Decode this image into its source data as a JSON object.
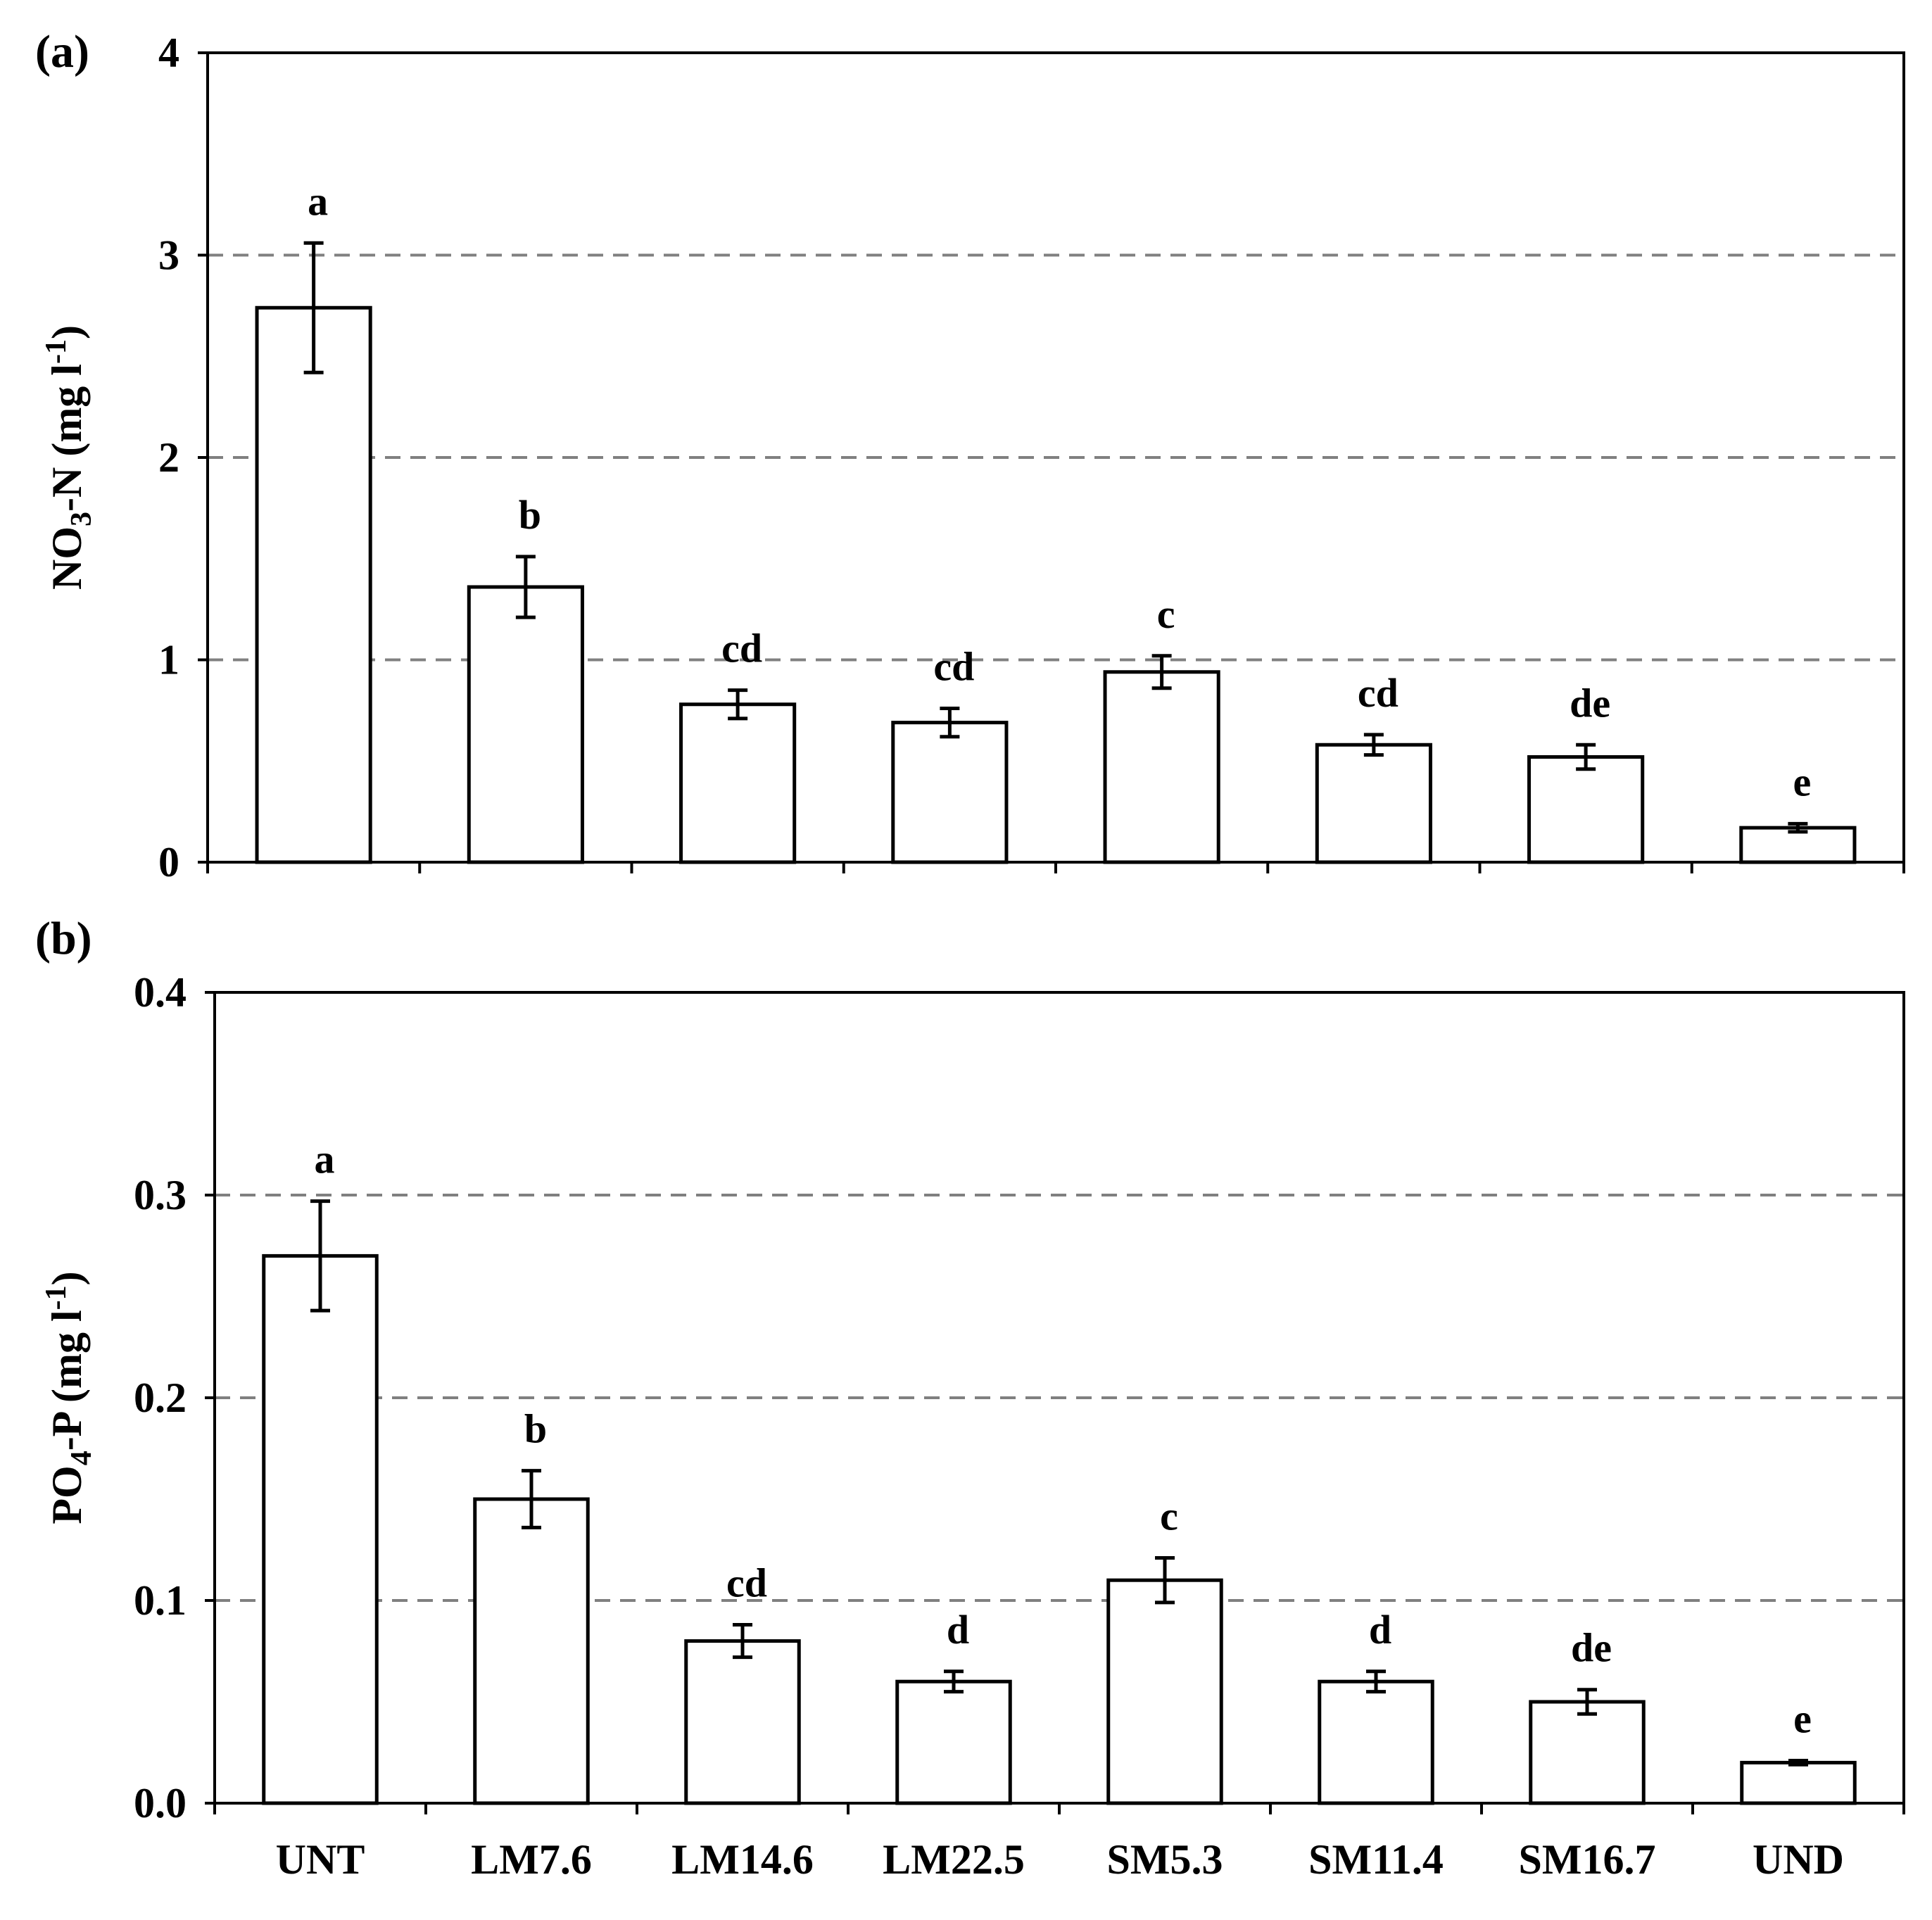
{
  "chart_data": [
    {
      "type": "bar",
      "panel_label": "(a)",
      "ylabel": "NO",
      "ylabel_sub": "3",
      "ylabel_after": "-N (mg l",
      "ylabel_sup": "-1",
      "ylabel_close": ")",
      "ylim": [
        0,
        4
      ],
      "yticks": [
        "0",
        "1",
        "2",
        "3",
        "4"
      ],
      "ytick_values": [
        0,
        1,
        2,
        3,
        4
      ],
      "categories": [
        "UNT",
        "LM7.6",
        "LM14.6",
        "LM22.5",
        "SM5.3",
        "SM11.4",
        "SM16.7",
        "UND"
      ],
      "values": [
        2.74,
        1.36,
        0.78,
        0.69,
        0.94,
        0.58,
        0.52,
        0.17
      ],
      "errors": [
        0.32,
        0.15,
        0.07,
        0.07,
        0.08,
        0.05,
        0.06,
        0.02
      ],
      "letters": [
        "a",
        "b",
        "cd",
        "cd",
        "c",
        "cd",
        "de",
        "e"
      ],
      "grid": "dashed horizontal at 1, 2, 3",
      "show_xlabels": false
    },
    {
      "type": "bar",
      "panel_label": "(b)",
      "ylabel": "PO",
      "ylabel_sub": "4",
      "ylabel_after": "-P (mg l",
      "ylabel_sup": "-1",
      "ylabel_close": ")",
      "ylim": [
        0,
        0.4
      ],
      "yticks": [
        "0.0",
        "0.1",
        "0.2",
        "0.3",
        "0.4"
      ],
      "ytick_values": [
        0,
        0.1,
        0.2,
        0.3,
        0.4
      ],
      "categories": [
        "UNT",
        "LM7.6",
        "LM14.6",
        "LM22.5",
        "SM5.3",
        "SM11.4",
        "SM16.7",
        "UND"
      ],
      "values": [
        0.27,
        0.15,
        0.08,
        0.06,
        0.11,
        0.06,
        0.05,
        0.02
      ],
      "errors": [
        0.027,
        0.014,
        0.008,
        0.005,
        0.011,
        0.005,
        0.006,
        0.001
      ],
      "letters": [
        "a",
        "b",
        "cd",
        "d",
        "c",
        "d",
        "de",
        "e"
      ],
      "grid": "dashed horizontal at 0.1, 0.2, 0.3",
      "show_xlabels": true
    }
  ]
}
